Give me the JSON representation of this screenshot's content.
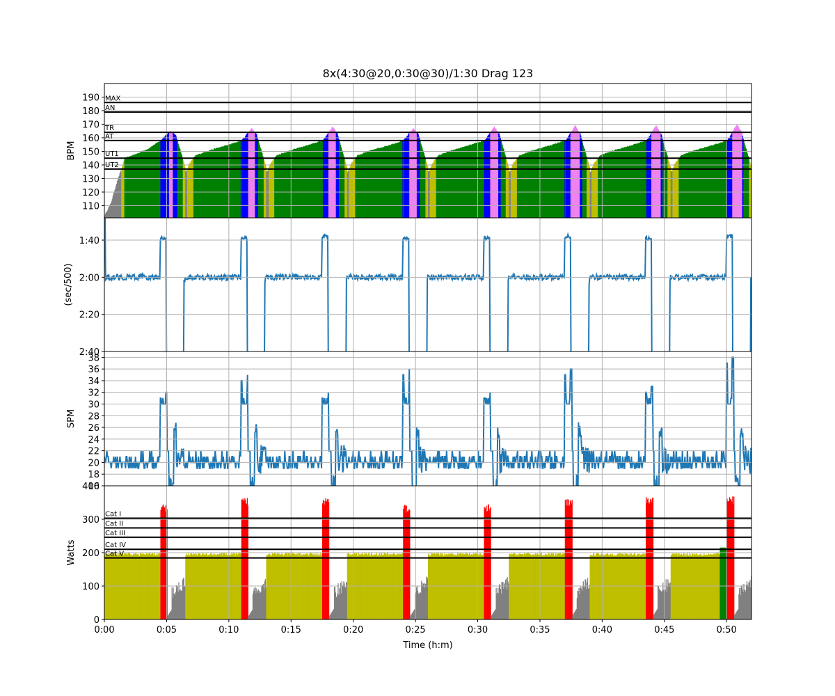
{
  "chart_data": {
    "title": "8x(4:30@20,0:30@30)/1:30 Drag 123",
    "xlabel": "Time (h:m)",
    "xlim": [
      0,
      52
    ],
    "x_unit": "minutes",
    "x_ticks": [
      0,
      5,
      10,
      15,
      20,
      25,
      30,
      35,
      40,
      45,
      50
    ],
    "x_tick_labels": [
      "0:00",
      "0:05",
      "0:10",
      "0:15",
      "0:20",
      "0:25",
      "0:30",
      "0:35",
      "0:40",
      "0:45",
      "0:50"
    ],
    "grid": true,
    "interval_starts": [
      0.0,
      6.5,
      13.0,
      19.5,
      26.0,
      32.5,
      39.0,
      45.5
    ],
    "panels": [
      {
        "type": "area",
        "ylabel": "BPM",
        "ylim": [
          101,
          200
        ],
        "y_ticks": [
          110,
          120,
          130,
          140,
          150,
          160,
          170,
          180,
          190
        ],
        "y_tick_labels": [
          "110",
          "120",
          "130",
          "140",
          "150",
          "160",
          "170",
          "180",
          "190"
        ],
        "zone_lines": [
          {
            "label": "MAX",
            "value": 186
          },
          {
            "label": "AN",
            "value": 179
          },
          {
            "label": "TR",
            "value": 164
          },
          {
            "label": "AT",
            "value": 158
          },
          {
            "label": "UT1",
            "value": 145
          },
          {
            "label": "UT2",
            "value": 137
          }
        ],
        "zone_colors": {
          "rest": "#808080",
          "UT2": "#bfbf00",
          "UT1": "#008000",
          "AT": "#0000ff",
          "TR": "#ee82ee",
          "AN": "#ff0000"
        },
        "interval_profile": [
          [
            0,
            135
          ],
          [
            0.1,
            136
          ],
          [
            0.3,
            141
          ],
          [
            0.8,
            147
          ],
          [
            2.0,
            151
          ],
          [
            3.5,
            155
          ],
          [
            4.5,
            158
          ],
          [
            4.9,
            162
          ],
          [
            5.3,
            165
          ],
          [
            5.7,
            162
          ],
          [
            6.1,
            150
          ],
          [
            6.5,
            137
          ]
        ],
        "first_interval_profile": [
          [
            0,
            103
          ],
          [
            0.5,
            112
          ],
          [
            1.0,
            128
          ],
          [
            1.3,
            136
          ],
          [
            1.6,
            145
          ],
          [
            2.5,
            148
          ],
          [
            3.5,
            152
          ],
          [
            4.5,
            158
          ],
          [
            4.9,
            162
          ],
          [
            5.3,
            165
          ],
          [
            5.7,
            162
          ],
          [
            6.1,
            150
          ],
          [
            6.5,
            137
          ]
        ],
        "interval_peaks": [
          165,
          167,
          168,
          167,
          168,
          169,
          169,
          170
        ]
      },
      {
        "type": "line",
        "ylabel": "(sec/500)",
        "ylim": [
          160,
          88
        ],
        "y_ticks": [
          100,
          120,
          140,
          160
        ],
        "y_tick_labels": [
          "1:40",
          "2:00",
          "2:20",
          "2:40"
        ],
        "color": "#1f77b4",
        "work_value": 122,
        "sprint_value": 99,
        "interval_sprint_values": [
          99,
          99,
          98,
          99,
          99,
          98,
          99,
          98
        ]
      },
      {
        "type": "line",
        "ylabel": "SPM",
        "ylim": [
          16,
          39
        ],
        "y_ticks": [
          16,
          18,
          20,
          22,
          24,
          26,
          28,
          30,
          32,
          34,
          36,
          38
        ],
        "y_tick_labels": [
          "16",
          "18",
          "20",
          "22",
          "24",
          "26",
          "28",
          "30",
          "32",
          "34",
          "36",
          "38"
        ],
        "color": "#1f77b4",
        "work_value": 20,
        "interval_peak_values": [
          32,
          35,
          32,
          36,
          32,
          36,
          33,
          38
        ]
      },
      {
        "type": "bar",
        "ylabel": "Watts",
        "ylim": [
          0,
          400
        ],
        "y_ticks": [
          0,
          100,
          200,
          300,
          400
        ],
        "y_tick_labels": [
          "0",
          "100",
          "200",
          "300",
          "400"
        ],
        "zone_lines": [
          {
            "label": "Cat I",
            "value": 303
          },
          {
            "label": "Cat II",
            "value": 274
          },
          {
            "label": "Cat III",
            "value": 246
          },
          {
            "label": "Cat IV",
            "value": 210
          },
          {
            "label": "Cat V",
            "value": 184
          }
        ],
        "zone_colors": {
          "rest": "#808080",
          "work": "#bfbf00",
          "sprint": "#ff0000",
          "moderate": "#008000"
        },
        "work_value": 195,
        "interval_sprint_values": [
          340,
          360,
          360,
          340,
          340,
          355,
          365,
          365
        ]
      }
    ]
  }
}
